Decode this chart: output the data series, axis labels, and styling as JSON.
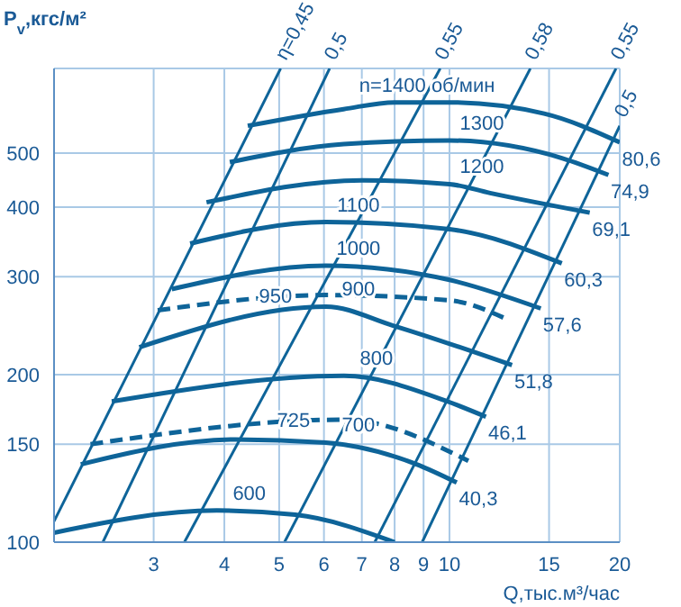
{
  "chart_data": {
    "type": "line",
    "xlabel": "Q,тыс.м³/час",
    "ylabel": "P$_{v}$,кгс/м²",
    "log": "xy",
    "grid": true,
    "marker": "none",
    "xlim": [
      2,
      20
    ],
    "ylim": [
      100,
      710
    ],
    "xticks": [
      3,
      4,
      5,
      6,
      7,
      8,
      9,
      10,
      15,
      20
    ],
    "yticks": [
      100,
      150,
      200,
      300,
      400,
      500
    ],
    "series": [
      {
        "name": "n=1400 об/мин",
        "color": "#0e6499",
        "x": [
          4.4,
          6.5,
          8,
          10,
          14.7,
          20
        ],
        "values": [
          560,
          600,
          617,
          617,
          589,
          523
        ]
      },
      {
        "name": "1300",
        "color": "#0e6499",
        "x": [
          4.09,
          6.5,
          10,
          15.8,
          19.1
        ],
        "values": [
          482,
          519,
          527,
          490,
          457
        ]
      },
      {
        "name": "1200",
        "color": "#0e6499",
        "x": [
          3.72,
          7.01,
          10,
          11.8,
          17.7
        ],
        "values": [
          408,
          447,
          440,
          424,
          391
        ]
      },
      {
        "name": "1100",
        "color": "#0e6499",
        "x": [
          3.48,
          6.05,
          10,
          15.8
        ],
        "values": [
          344,
          376,
          365,
          317
        ]
      },
      {
        "name": "1000",
        "color": "#0e6499",
        "x": [
          3.23,
          6.05,
          10,
          14.5
        ],
        "values": [
          285,
          314,
          296,
          263
        ]
      },
      {
        "name": "950",
        "color": "#0e6499",
        "line_style": "dashed",
        "x": [
          3.05,
          6.05,
          10,
          12.7
        ],
        "values": [
          261,
          278,
          272,
          251
        ]
      },
      {
        "name": "900",
        "color": "#0e6499",
        "x": [
          2.83,
          6.05,
          7.95,
          12.9
        ],
        "values": [
          224,
          265,
          245,
          208
        ]
      },
      {
        "name": "800",
        "color": "#0e6499",
        "x": [
          2.53,
          6.51,
          9.92,
          11.6
        ],
        "values": [
          179,
          199,
          179,
          168
        ]
      },
      {
        "name": "725",
        "color": "#0e6499",
        "line_style": "dashed",
        "x": [
          2.32,
          6.51,
          10.8
        ],
        "values": [
          150,
          166,
          140
        ]
      },
      {
        "name": "700",
        "color": "#0e6499",
        "x": [
          2.23,
          4.18,
          6.05,
          8.75,
          10.3
        ],
        "values": [
          138,
          153,
          151,
          138,
          128
        ]
      },
      {
        "name": "600",
        "color": "#0e6499",
        "x": [
          2,
          3.88,
          5.34,
          8
        ],
        "values": [
          104,
          114,
          112,
          100
        ]
      },
      {
        "name": "η=0,45",
        "color": "#0e6499",
        "x": [
          2,
          5.03
        ],
        "values": [
          109,
          710
        ]
      },
      {
        "name": "0,5",
        "color": "#0e6499",
        "x": [
          2.44,
          6.14
        ],
        "values": [
          100,
          710
        ]
      },
      {
        "name": "0,55",
        "color": "#0e6499",
        "x": [
          3.4,
          9.63
        ],
        "values": [
          100,
          710
        ]
      },
      {
        "name": "0,58",
        "color": "#0e6499",
        "x": [
          5.11,
          13.9
        ],
        "values": [
          100,
          710
        ]
      },
      {
        "name": "0,55",
        "color": "#0e6499",
        "x": [
          7.38,
          19.7
        ],
        "values": [
          100,
          710
        ]
      },
      {
        "name": "0,5",
        "color": "#0e6499",
        "x": [
          8.95,
          20
        ],
        "values": [
          100,
          560
        ]
      }
    ],
    "annotations": [
      {
        "text": "80,6",
        "x": 20,
        "y": 523
      },
      {
        "text": "74,9",
        "x": 19.1,
        "y": 457
      },
      {
        "text": "69,1",
        "x": 17.7,
        "y": 391
      },
      {
        "text": "60,3",
        "x": 15.8,
        "y": 317
      },
      {
        "text": "57,6",
        "x": 14.5,
        "y": 263
      },
      {
        "text": "51,8",
        "x": 12.9,
        "y": 208
      },
      {
        "text": "46,1",
        "x": 11.6,
        "y": 168
      },
      {
        "text": "40,3",
        "x": 10.3,
        "y": 128
      }
    ]
  }
}
